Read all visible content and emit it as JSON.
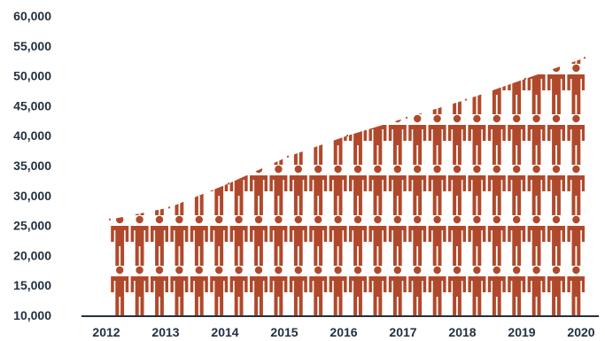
{
  "chart_data": {
    "type": "area",
    "title": "",
    "xlabel": "",
    "ylabel": "",
    "x": [
      "2012",
      "2013",
      "2014",
      "2015",
      "2016",
      "2017",
      "2018",
      "2019",
      "2020"
    ],
    "series": [
      {
        "values": [
          26000,
          28000,
          32000,
          36500,
          40000,
          43000,
          46000,
          49500,
          53000
        ]
      }
    ],
    "ylim": [
      10000,
      60000
    ],
    "yticks": [
      {
        "value": 10000,
        "label": "10,000"
      },
      {
        "value": 15000,
        "label": "15,000"
      },
      {
        "value": 20000,
        "label": "20,000"
      },
      {
        "value": 25000,
        "label": "25,000"
      },
      {
        "value": 30000,
        "label": "30,000"
      },
      {
        "value": 35000,
        "label": "35,000"
      },
      {
        "value": 40000,
        "label": "40,000"
      },
      {
        "value": 45000,
        "label": "45,000"
      },
      {
        "value": 50000,
        "label": "50,000"
      },
      {
        "value": 55000,
        "label": "55,000"
      },
      {
        "value": 60000,
        "label": "60,000"
      }
    ],
    "grid": false,
    "legend": "none",
    "fill_style": "pictogram-people",
    "color": "#b0492b"
  }
}
